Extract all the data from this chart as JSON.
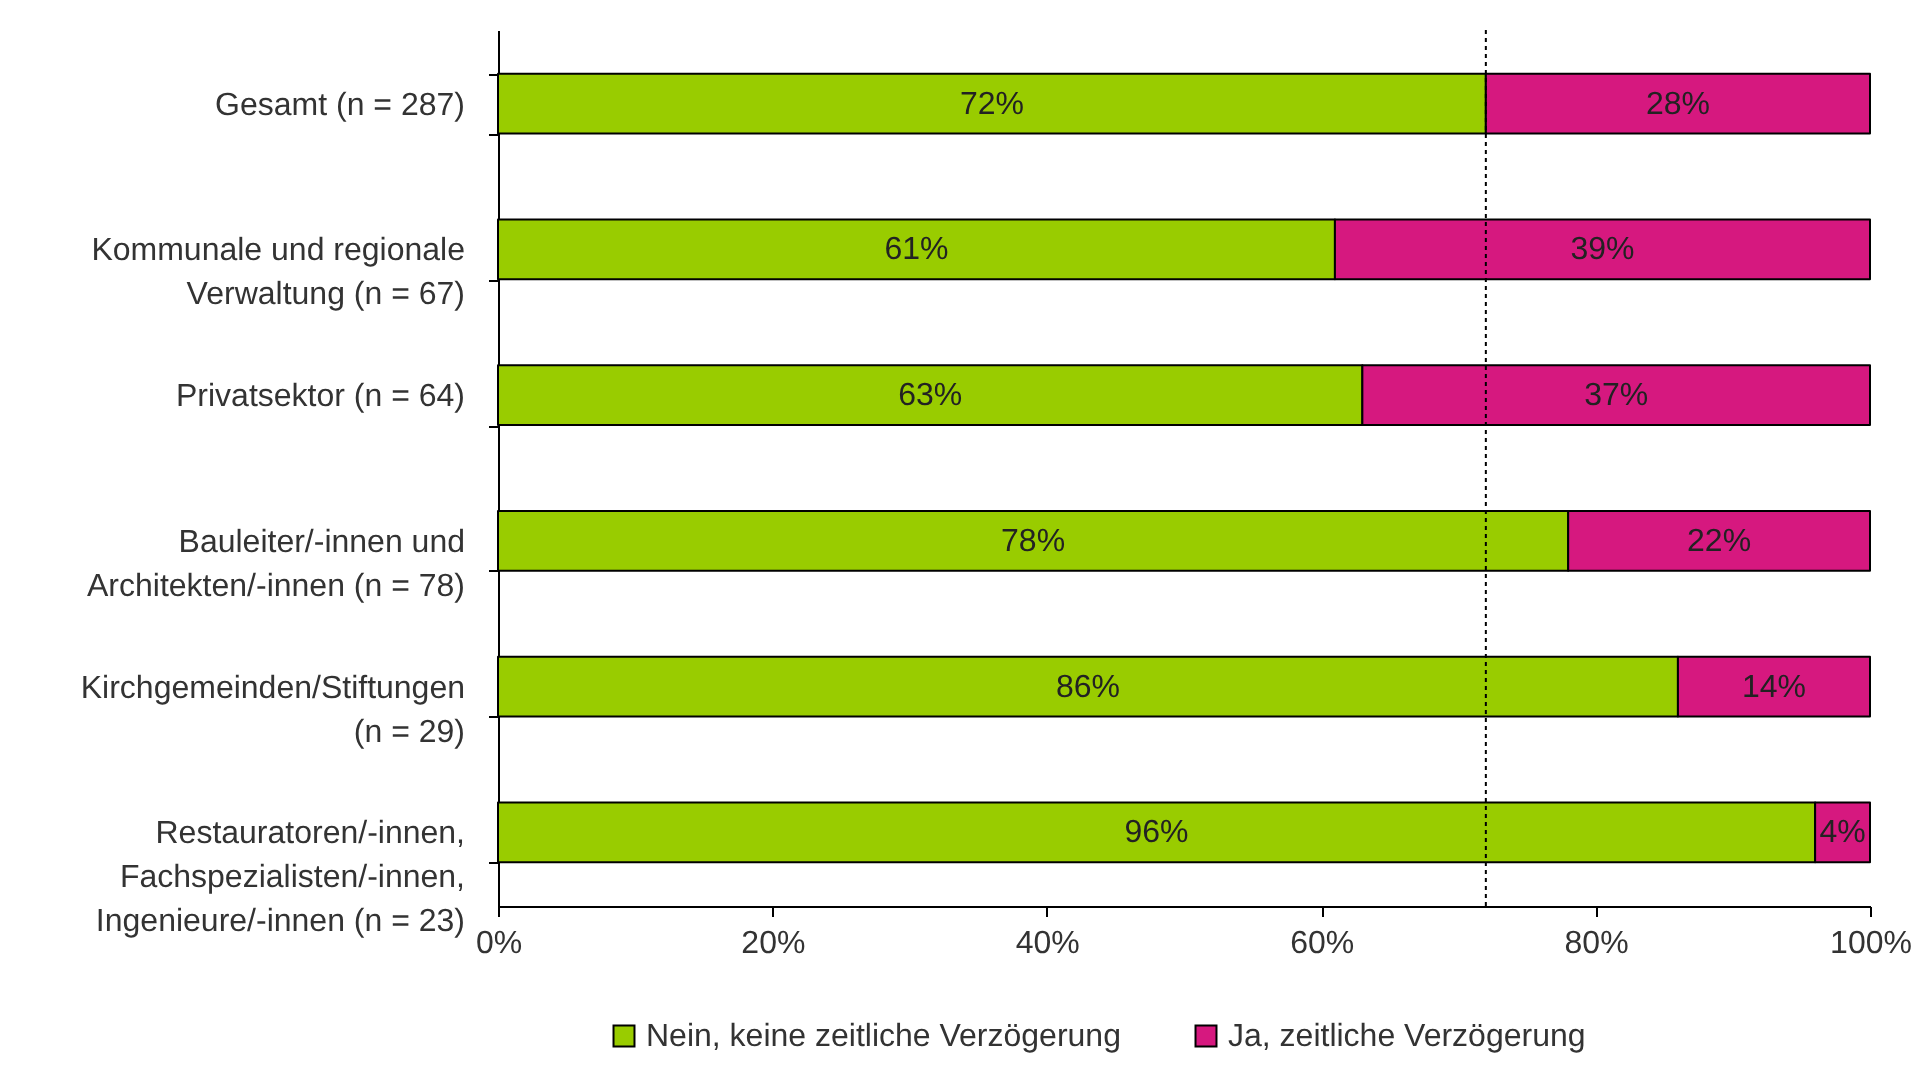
{
  "chart_data": {
    "type": "bar",
    "orientation": "horizontal",
    "stacked": true,
    "categories": [
      "Gesamt (n = 287)",
      "Kommunale und regionale Verwaltung (n = 67)",
      "Privatsektor (n = 64)",
      "Bauleiter/-innen und Architekten/-innen (n = 78)",
      "Kirchgemeinden/Stiftungen (n = 29)",
      "Restauratoren/-innen, Fachspezialisten/-innen, Ingenieure/-innen (n = 23)"
    ],
    "series": [
      {
        "name": "Nein, keine zeitliche Verzögerung",
        "color": "#99cc00",
        "values": [
          72,
          61,
          63,
          78,
          86,
          96
        ],
        "value_labels": [
          "72%",
          "61%",
          "63%",
          "78%",
          "86%",
          "96%"
        ]
      },
      {
        "name": "Ja, zeitliche Verzögerung",
        "color": "#d6187f",
        "values": [
          28,
          39,
          37,
          22,
          14,
          4
        ],
        "value_labels": [
          "28%",
          "39%",
          "37%",
          "22%",
          "14%",
          "4%"
        ]
      }
    ],
    "xlim": [
      0,
      100
    ],
    "xticks": [
      {
        "value": 0,
        "label": "0%"
      },
      {
        "value": 20,
        "label": "20%"
      },
      {
        "value": 40,
        "label": "40%"
      },
      {
        "value": 60,
        "label": "60%"
      },
      {
        "value": 80,
        "label": "80%"
      },
      {
        "value": 100,
        "label": "100%"
      }
    ],
    "ref_lines": [
      {
        "axis": "x",
        "value": 72,
        "color": "#000000",
        "line_style": "dotted"
      }
    ],
    "legend": "bottom"
  }
}
